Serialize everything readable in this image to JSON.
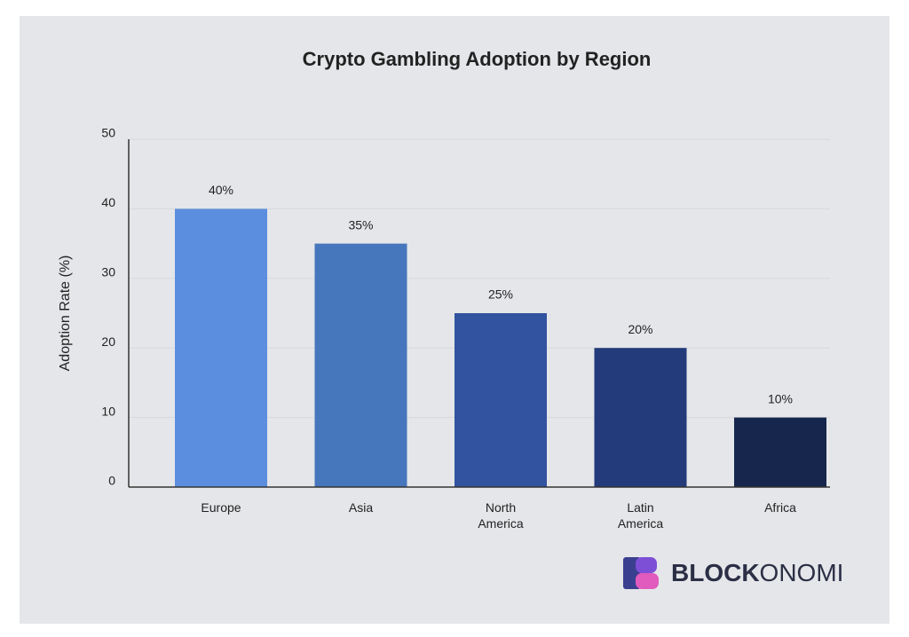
{
  "chart_data": {
    "type": "bar",
    "title": "Crypto Gambling Adoption by Region",
    "y_label": "Adoption Rate (%)",
    "categories": [
      "Europe",
      "Asia",
      "North America",
      "Latin America",
      "Africa"
    ],
    "values": [
      40,
      35,
      25,
      20,
      10
    ],
    "value_labels": [
      "40%",
      "35%",
      "25%",
      "20%",
      "10%"
    ],
    "colors": [
      "#5b8ede",
      "#4677bd",
      "#3153a0",
      "#233b7a",
      "#16264c"
    ],
    "ylim": [
      0,
      50
    ],
    "yticks": [
      0,
      10,
      20,
      30,
      40,
      50
    ],
    "grid": true
  },
  "logo": {
    "bold": "BLOCK",
    "light": "ONOMI"
  }
}
